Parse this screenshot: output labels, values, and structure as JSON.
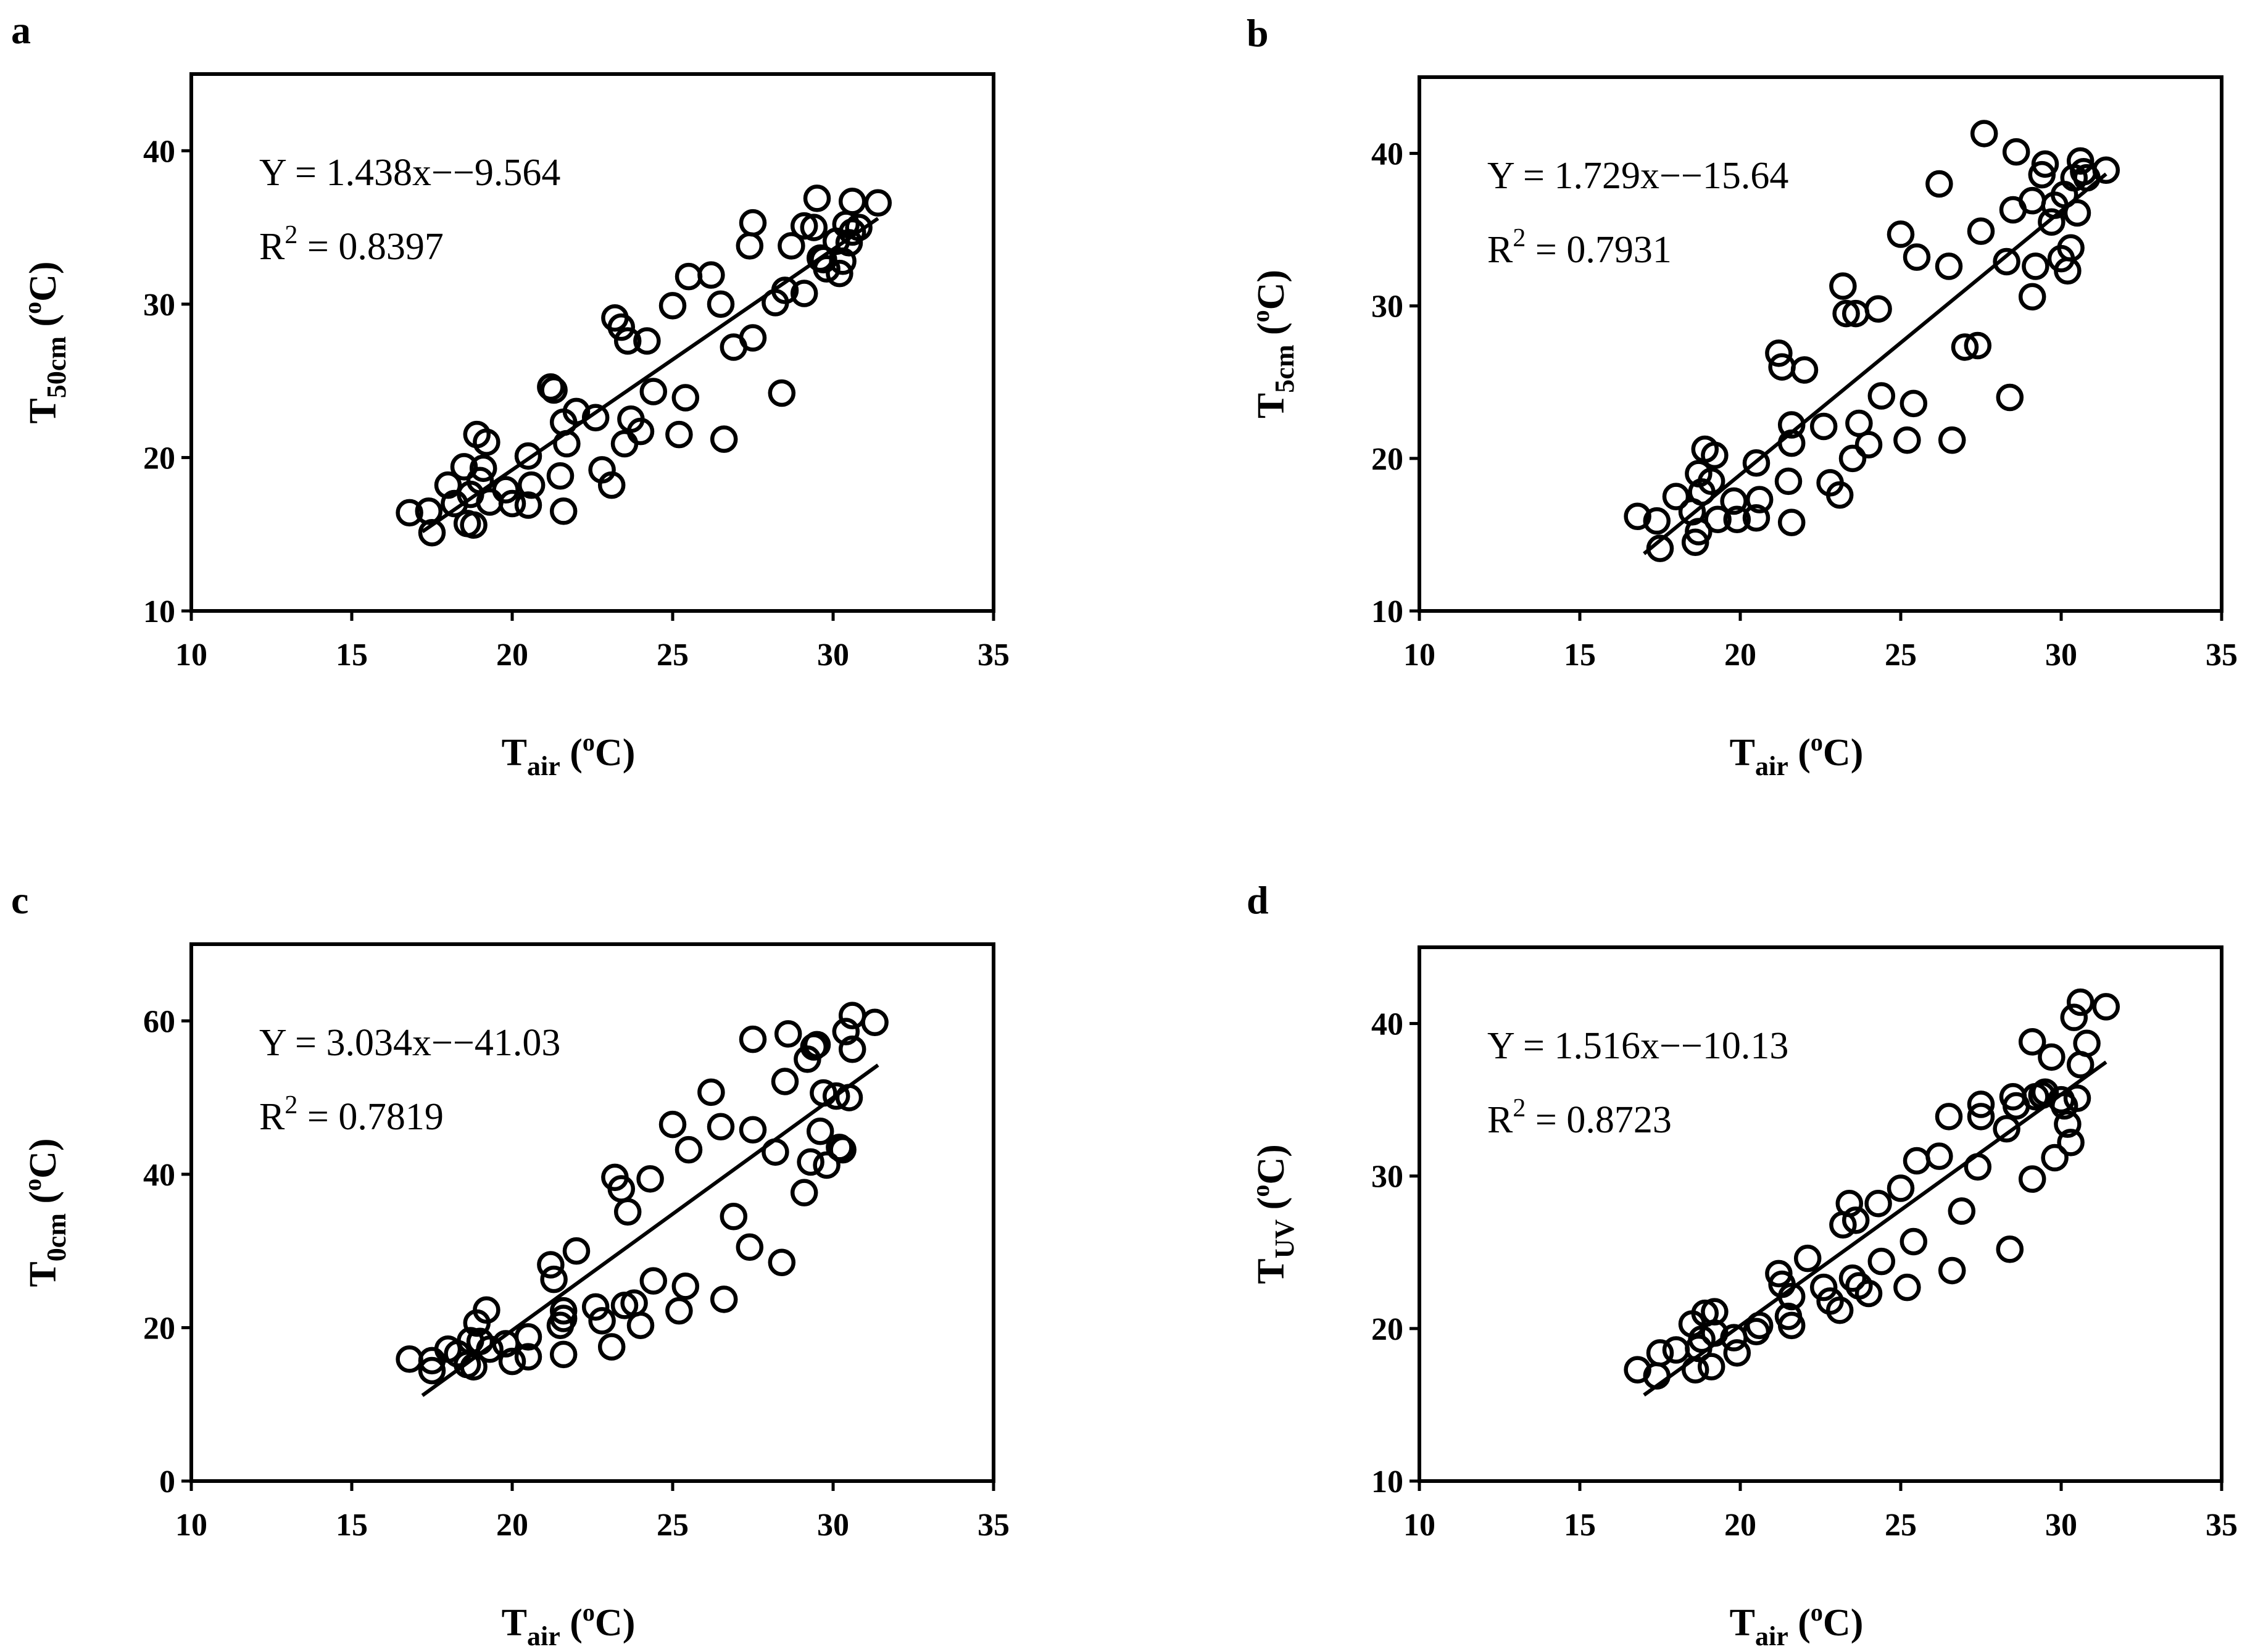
{
  "chart_data": [
    {
      "type": "scatter",
      "panel": "a",
      "xlabel": {
        "main": "T",
        "sub": "air",
        "open": "(",
        "sup": "o",
        "unit": "C)"
      },
      "ylabel": {
        "main": "T",
        "sub": "50cm",
        "open": "(",
        "sup": "o",
        "unit": "C)"
      },
      "xlim": [
        10,
        35
      ],
      "ylim": [
        10,
        45
      ],
      "xticks": [
        10,
        15,
        20,
        25,
        30,
        35
      ],
      "yticks": [
        10,
        20,
        30,
        40
      ],
      "equation": "Y = 1.438x−−9.564",
      "r2_label": "R",
      "r2_sup": "2",
      "r2_value": "= 0.8397",
      "fit": {
        "slope": 1.438,
        "intercept": -9.564,
        "x_range": [
          17.2,
          31.4
        ]
      },
      "points": [
        [
          16.8,
          16.4
        ],
        [
          17.4,
          16.5
        ],
        [
          17.5,
          15.1
        ],
        [
          18.0,
          18.2
        ],
        [
          18.2,
          17.0
        ],
        [
          18.5,
          19.4
        ],
        [
          18.6,
          15.7
        ],
        [
          18.7,
          17.6
        ],
        [
          18.8,
          15.6
        ],
        [
          18.9,
          21.5
        ],
        [
          19.0,
          18.5
        ],
        [
          19.1,
          19.3
        ],
        [
          19.2,
          21.0
        ],
        [
          19.3,
          17.1
        ],
        [
          19.8,
          17.9
        ],
        [
          20.0,
          17.0
        ],
        [
          20.5,
          20.1
        ],
        [
          20.5,
          16.9
        ],
        [
          20.6,
          18.2
        ],
        [
          21.2,
          24.6
        ],
        [
          21.3,
          24.4
        ],
        [
          21.5,
          18.8
        ],
        [
          21.6,
          16.5
        ],
        [
          21.6,
          22.3
        ],
        [
          21.7,
          20.9
        ],
        [
          22.0,
          23.0
        ],
        [
          22.6,
          22.6
        ],
        [
          22.8,
          19.2
        ],
        [
          23.1,
          18.2
        ],
        [
          23.2,
          29.1
        ],
        [
          23.4,
          28.5
        ],
        [
          23.5,
          20.9
        ],
        [
          23.6,
          27.6
        ],
        [
          23.7,
          22.5
        ],
        [
          24.0,
          21.7
        ],
        [
          24.2,
          27.6
        ],
        [
          24.4,
          24.3
        ],
        [
          25.0,
          29.9
        ],
        [
          25.2,
          21.5
        ],
        [
          25.4,
          23.9
        ],
        [
          25.5,
          31.8
        ],
        [
          26.2,
          31.9
        ],
        [
          26.5,
          30.0
        ],
        [
          26.6,
          21.2
        ],
        [
          26.9,
          27.2
        ],
        [
          27.4,
          33.8
        ],
        [
          27.5,
          35.3
        ],
        [
          27.5,
          27.8
        ],
        [
          28.2,
          30.1
        ],
        [
          28.4,
          24.2
        ],
        [
          28.5,
          30.9
        ],
        [
          28.7,
          33.8
        ],
        [
          29.1,
          35.1
        ],
        [
          29.1,
          30.7
        ],
        [
          29.4,
          35.0
        ],
        [
          29.5,
          36.9
        ],
        [
          29.6,
          33.0
        ],
        [
          29.7,
          32.9
        ],
        [
          29.8,
          32.3
        ],
        [
          30.1,
          34.1
        ],
        [
          30.2,
          32.0
        ],
        [
          30.3,
          32.8
        ],
        [
          30.4,
          35.2
        ],
        [
          30.5,
          34.0
        ],
        [
          30.6,
          36.7
        ],
        [
          30.6,
          34.7
        ],
        [
          30.8,
          35.0
        ],
        [
          31.4,
          36.6
        ]
      ]
    },
    {
      "type": "scatter",
      "panel": "b",
      "xlabel": {
        "main": "T",
        "sub": "air",
        "open": "(",
        "sup": "o",
        "unit": "C)"
      },
      "ylabel": {
        "main": "T",
        "sub": "5cm",
        "open": "(",
        "sup": "o",
        "unit": "C)"
      },
      "xlim": [
        10,
        35
      ],
      "ylim": [
        10,
        45
      ],
      "xticks": [
        10,
        15,
        20,
        25,
        30,
        35
      ],
      "yticks": [
        10,
        20,
        30,
        40
      ],
      "equation": "Y = 1.729x−−15.64",
      "r2_label": "R",
      "r2_sup": "2",
      "r2_value": "= 0.7931",
      "fit": {
        "slope": 1.729,
        "intercept": -15.64,
        "x_range": [
          17.0,
          31.4
        ]
      },
      "points": [
        [
          16.8,
          16.2
        ],
        [
          17.4,
          15.9
        ],
        [
          17.5,
          14.1
        ],
        [
          18.0,
          17.5
        ],
        [
          18.5,
          16.5
        ],
        [
          18.6,
          14.5
        ],
        [
          18.7,
          15.2
        ],
        [
          18.7,
          19.0
        ],
        [
          18.8,
          17.8
        ],
        [
          18.9,
          20.6
        ],
        [
          19.1,
          18.5
        ],
        [
          19.2,
          20.2
        ],
        [
          19.3,
          16.0
        ],
        [
          19.8,
          17.2
        ],
        [
          19.9,
          16.0
        ],
        [
          20.5,
          19.7
        ],
        [
          20.5,
          16.1
        ],
        [
          20.6,
          17.3
        ],
        [
          21.2,
          26.9
        ],
        [
          21.3,
          26.0
        ],
        [
          21.5,
          18.5
        ],
        [
          21.6,
          21.0
        ],
        [
          21.6,
          22.2
        ],
        [
          21.6,
          15.8
        ],
        [
          22.0,
          25.8
        ],
        [
          22.6,
          22.1
        ],
        [
          22.8,
          18.4
        ],
        [
          23.1,
          17.6
        ],
        [
          23.2,
          31.3
        ],
        [
          23.3,
          29.5
        ],
        [
          23.5,
          20.0
        ],
        [
          23.6,
          29.5
        ],
        [
          23.7,
          22.3
        ],
        [
          24.0,
          20.9
        ],
        [
          24.3,
          29.8
        ],
        [
          24.4,
          24.1
        ],
        [
          25.0,
          34.7
        ],
        [
          25.2,
          21.2
        ],
        [
          25.4,
          23.6
        ],
        [
          25.5,
          33.2
        ],
        [
          26.2,
          38.0
        ],
        [
          26.5,
          32.6
        ],
        [
          26.6,
          21.2
        ],
        [
          27.0,
          27.3
        ],
        [
          27.4,
          27.4
        ],
        [
          27.5,
          34.9
        ],
        [
          27.6,
          41.3
        ],
        [
          28.3,
          32.9
        ],
        [
          28.4,
          24.0
        ],
        [
          28.5,
          36.3
        ],
        [
          28.6,
          40.1
        ],
        [
          29.1,
          30.6
        ],
        [
          29.1,
          36.9
        ],
        [
          29.2,
          32.6
        ],
        [
          29.4,
          38.6
        ],
        [
          29.5,
          39.3
        ],
        [
          29.7,
          35.5
        ],
        [
          29.8,
          36.6
        ],
        [
          30.0,
          33.1
        ],
        [
          30.1,
          37.3
        ],
        [
          30.2,
          32.3
        ],
        [
          30.3,
          33.8
        ],
        [
          30.4,
          38.4
        ],
        [
          30.5,
          36.1
        ],
        [
          30.6,
          39.5
        ],
        [
          30.7,
          38.8
        ],
        [
          30.8,
          38.4
        ],
        [
          31.4,
          38.9
        ]
      ]
    },
    {
      "type": "scatter",
      "panel": "c",
      "xlabel": {
        "main": "T",
        "sub": "air",
        "open": "(",
        "sup": "o",
        "unit": "C)"
      },
      "ylabel": {
        "main": "T",
        "sub": "0cm",
        "open": "(",
        "sup": "o",
        "unit": "C)"
      },
      "xlim": [
        10,
        35
      ],
      "ylim": [
        0,
        70
      ],
      "xticks": [
        10,
        15,
        20,
        25,
        30,
        35
      ],
      "yticks": [
        0,
        20,
        40,
        60
      ],
      "equation": "Y = 3.034x−−41.03",
      "r2_label": "R",
      "r2_sup": "2",
      "r2_value": "= 0.7819",
      "fit": {
        "slope": 3.034,
        "intercept": -41.03,
        "x_range": [
          17.2,
          31.4
        ]
      },
      "points": [
        [
          16.8,
          15.9
        ],
        [
          17.5,
          15.7
        ],
        [
          17.5,
          14.4
        ],
        [
          18.0,
          17.2
        ],
        [
          18.3,
          16.6
        ],
        [
          18.6,
          15.2
        ],
        [
          18.7,
          18.3
        ],
        [
          18.8,
          14.9
        ],
        [
          18.9,
          20.6
        ],
        [
          19.0,
          18.2
        ],
        [
          19.2,
          22.3
        ],
        [
          19.3,
          17.2
        ],
        [
          19.8,
          17.9
        ],
        [
          20.0,
          15.6
        ],
        [
          20.5,
          18.8
        ],
        [
          20.5,
          16.2
        ],
        [
          21.2,
          28.2
        ],
        [
          21.3,
          26.3
        ],
        [
          21.5,
          20.3
        ],
        [
          21.6,
          21.2
        ],
        [
          21.6,
          22.2
        ],
        [
          21.6,
          16.5
        ],
        [
          22.0,
          30.0
        ],
        [
          22.6,
          22.7
        ],
        [
          22.8,
          20.9
        ],
        [
          23.1,
          17.5
        ],
        [
          23.2,
          39.6
        ],
        [
          23.4,
          38.1
        ],
        [
          23.5,
          22.9
        ],
        [
          23.6,
          35.1
        ],
        [
          23.8,
          23.2
        ],
        [
          24.0,
          20.3
        ],
        [
          24.3,
          39.4
        ],
        [
          24.4,
          26.1
        ],
        [
          25.0,
          46.5
        ],
        [
          25.2,
          22.2
        ],
        [
          25.4,
          25.4
        ],
        [
          25.5,
          43.2
        ],
        [
          26.2,
          50.7
        ],
        [
          26.5,
          46.2
        ],
        [
          26.6,
          23.7
        ],
        [
          26.9,
          34.5
        ],
        [
          27.4,
          30.5
        ],
        [
          27.5,
          45.8
        ],
        [
          27.5,
          57.6
        ],
        [
          28.2,
          42.9
        ],
        [
          28.4,
          28.5
        ],
        [
          28.5,
          52.1
        ],
        [
          28.6,
          58.3
        ],
        [
          29.1,
          37.6
        ],
        [
          29.2,
          55.0
        ],
        [
          29.3,
          41.6
        ],
        [
          29.4,
          56.6
        ],
        [
          29.5,
          56.9
        ],
        [
          29.6,
          45.6
        ],
        [
          29.7,
          50.6
        ],
        [
          29.8,
          41.2
        ],
        [
          30.1,
          50.2
        ],
        [
          30.2,
          43.5
        ],
        [
          30.3,
          43.2
        ],
        [
          30.4,
          58.6
        ],
        [
          30.5,
          50.0
        ],
        [
          30.6,
          60.7
        ],
        [
          30.6,
          56.3
        ],
        [
          31.3,
          59.8
        ]
      ]
    },
    {
      "type": "scatter",
      "panel": "d",
      "xlabel": {
        "main": "T",
        "sub": "air",
        "open": "(",
        "sup": "o",
        "unit": "C)"
      },
      "ylabel": {
        "main": "T",
        "sub": "UV",
        "open": "(",
        "sup": "o",
        "unit": "C)"
      },
      "xlim": [
        10,
        35
      ],
      "ylim": [
        10,
        45
      ],
      "xticks": [
        10,
        15,
        20,
        25,
        30,
        35
      ],
      "yticks": [
        10,
        20,
        30,
        40
      ],
      "equation": "Y = 1.516x−−10.13",
      "r2_label": "R",
      "r2_sup": "2",
      "r2_value": "= 0.8723",
      "fit": {
        "slope": 1.516,
        "intercept": -10.13,
        "x_range": [
          17.0,
          31.4
        ]
      },
      "points": [
        [
          16.8,
          17.3
        ],
        [
          17.4,
          16.9
        ],
        [
          17.5,
          18.4
        ],
        [
          18.0,
          18.6
        ],
        [
          18.5,
          20.3
        ],
        [
          18.6,
          17.3
        ],
        [
          18.7,
          18.7
        ],
        [
          18.8,
          19.3
        ],
        [
          18.9,
          21.0
        ],
        [
          19.1,
          17.5
        ],
        [
          19.2,
          19.7
        ],
        [
          19.2,
          21.1
        ],
        [
          19.8,
          19.4
        ],
        [
          19.9,
          18.4
        ],
        [
          20.5,
          19.8
        ],
        [
          20.6,
          20.2
        ],
        [
          21.2,
          23.6
        ],
        [
          21.3,
          22.9
        ],
        [
          21.5,
          20.8
        ],
        [
          21.6,
          20.2
        ],
        [
          21.6,
          22.1
        ],
        [
          22.1,
          24.6
        ],
        [
          22.6,
          22.7
        ],
        [
          22.8,
          21.8
        ],
        [
          23.1,
          21.2
        ],
        [
          23.2,
          26.8
        ],
        [
          23.4,
          28.2
        ],
        [
          23.5,
          23.3
        ],
        [
          23.6,
          27.1
        ],
        [
          23.7,
          22.8
        ],
        [
          24.0,
          22.3
        ],
        [
          24.3,
          28.2
        ],
        [
          24.4,
          24.4
        ],
        [
          25.0,
          29.2
        ],
        [
          25.2,
          22.7
        ],
        [
          25.4,
          25.7
        ],
        [
          25.5,
          31.0
        ],
        [
          26.2,
          31.3
        ],
        [
          26.5,
          33.9
        ],
        [
          26.6,
          23.8
        ],
        [
          26.9,
          27.7
        ],
        [
          27.4,
          30.6
        ],
        [
          27.5,
          34.7
        ],
        [
          27.5,
          33.9
        ],
        [
          28.3,
          33.1
        ],
        [
          28.4,
          25.2
        ],
        [
          28.5,
          35.2
        ],
        [
          28.6,
          34.6
        ],
        [
          29.1,
          38.8
        ],
        [
          29.1,
          29.8
        ],
        [
          29.2,
          35.2
        ],
        [
          29.4,
          35.3
        ],
        [
          29.5,
          35.5
        ],
        [
          29.7,
          37.8
        ],
        [
          29.8,
          31.2
        ],
        [
          30.0,
          35.0
        ],
        [
          30.1,
          34.6
        ],
        [
          30.2,
          33.4
        ],
        [
          30.3,
          32.2
        ],
        [
          30.4,
          40.4
        ],
        [
          30.5,
          35.1
        ],
        [
          30.6,
          41.4
        ],
        [
          30.6,
          37.3
        ],
        [
          30.8,
          38.7
        ],
        [
          31.4,
          41.1
        ]
      ]
    }
  ]
}
